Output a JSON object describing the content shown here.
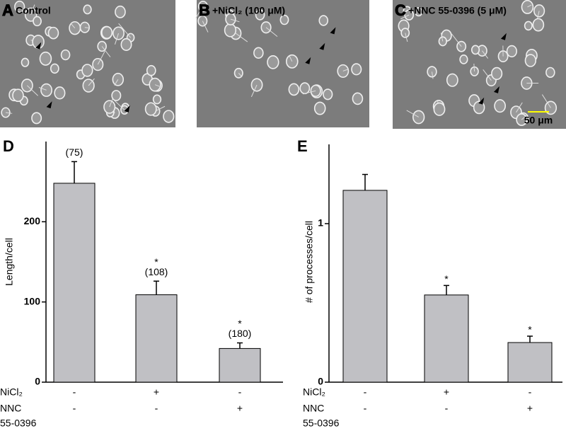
{
  "micrographs": [
    {
      "label": "A",
      "caption": "Control"
    },
    {
      "label": "B",
      "caption": "+NiCl₂ (100 μM)"
    },
    {
      "label": "C",
      "caption": "+NNC 55-0396 (5 μM)",
      "scale_bar": "50 μm"
    }
  ],
  "chart_data": [
    {
      "type": "bar",
      "panel_label": "D",
      "ylabel": "Length/cell",
      "color": "#c0c0c4",
      "ylim": [
        0,
        300
      ],
      "yticks": [
        0,
        100,
        200
      ],
      "values": [
        248,
        109,
        42
      ],
      "errors": [
        27,
        17,
        7
      ],
      "n_labels": [
        "(75)",
        "(108)",
        "(180)"
      ],
      "significance": [
        null,
        "*",
        "*"
      ],
      "conditions": [
        {
          "label": [
            "NiCl₂"
          ],
          "marks": [
            "-",
            "+",
            "-"
          ]
        },
        {
          "label": [
            "NNC",
            "55-0396"
          ],
          "marks": [
            "-",
            "-",
            "+"
          ]
        }
      ]
    },
    {
      "type": "bar",
      "panel_label": "E",
      "ylabel": "# of processes/cell",
      "color": "#c0c0c4",
      "ylim": [
        0,
        1.5
      ],
      "yticks": [
        0,
        1
      ],
      "values": [
        1.21,
        0.55,
        0.25
      ],
      "errors": [
        0.1,
        0.06,
        0.04
      ],
      "significance": [
        null,
        "*",
        "*"
      ],
      "conditions": [
        {
          "label": [
            "NiCl₂"
          ],
          "marks": [
            "-",
            "+",
            "-"
          ]
        },
        {
          "label": [
            "NNC",
            "55-0396"
          ],
          "marks": [
            "-",
            "-",
            "+"
          ]
        }
      ]
    }
  ]
}
